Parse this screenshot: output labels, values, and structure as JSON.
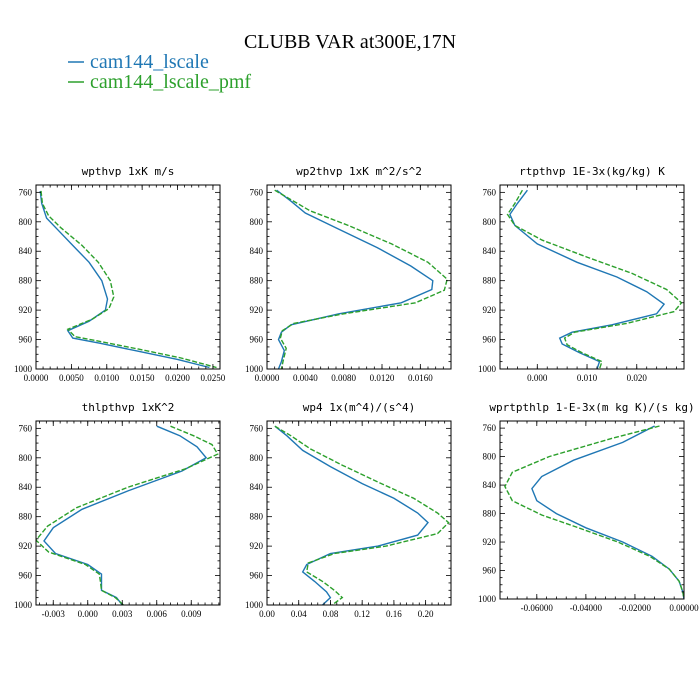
{
  "figure_title": "CLUBB VAR at300E,17N",
  "legend": [
    {
      "label": "cam144_lscale",
      "color": "#1f77b4",
      "dash": "solid"
    },
    {
      "label": "cam144_lscale_pmf",
      "color": "#2ca02c",
      "dash": "dashed"
    }
  ],
  "colors": {
    "series1": "#1f77b4",
    "series2": "#2ca02c"
  },
  "chart_data": [
    {
      "type": "line",
      "title": "wpthvp  1xK m/s",
      "xlim": [
        0.0,
        0.026
      ],
      "ylim": [
        1000,
        750
      ],
      "y_reversed": true,
      "xticks": [
        0.0,
        0.005,
        0.01,
        0.015,
        0.02,
        0.025
      ],
      "xtick_labels": [
        "0.0000",
        "0.0050",
        "0.0100",
        "0.0150",
        "0.0200",
        "0.0250"
      ],
      "yticks": [
        760,
        800,
        840,
        880,
        920,
        960,
        1000
      ],
      "ytick_labels": [
        "760",
        "800",
        "840",
        "880",
        "920",
        "960",
        "1000"
      ],
      "series": [
        {
          "name": "cam144_lscale",
          "points": [
            [
              0.0006,
              758
            ],
            [
              0.0008,
              775
            ],
            [
              0.0015,
              795
            ],
            [
              0.003,
              810
            ],
            [
              0.0055,
              835
            ],
            [
              0.0075,
              855
            ],
            [
              0.0093,
              880
            ],
            [
              0.0101,
              905
            ],
            [
              0.0098,
              920
            ],
            [
              0.0075,
              935
            ],
            [
              0.0045,
              948
            ],
            [
              0.0052,
              958
            ],
            [
              0.009,
              965
            ],
            [
              0.014,
              975
            ],
            [
              0.02,
              987
            ],
            [
              0.0245,
              998
            ]
          ]
        },
        {
          "name": "cam144_lscale_pmf",
          "points": [
            [
              0.0007,
              758
            ],
            [
              0.0009,
              775
            ],
            [
              0.0018,
              792
            ],
            [
              0.0035,
              808
            ],
            [
              0.0065,
              832
            ],
            [
              0.0088,
              855
            ],
            [
              0.0105,
              880
            ],
            [
              0.011,
              902
            ],
            [
              0.0103,
              918
            ],
            [
              0.008,
              932
            ],
            [
              0.0045,
              946
            ],
            [
              0.0055,
              956
            ],
            [
              0.0093,
              963
            ],
            [
              0.0145,
              973
            ],
            [
              0.0205,
              985
            ],
            [
              0.0255,
              998
            ]
          ]
        }
      ]
    },
    {
      "type": "line",
      "title": "wp2thvp  1xK m^2/s^2",
      "xlim": [
        0.0,
        0.0192
      ],
      "ylim": [
        1000,
        750
      ],
      "y_reversed": true,
      "xticks": [
        0.0,
        0.004,
        0.008,
        0.012,
        0.016
      ],
      "xtick_labels": [
        "0.0000",
        "0.0040",
        "0.0080",
        "0.0120",
        "0.0160"
      ],
      "yticks": [
        760,
        800,
        840,
        880,
        920,
        960,
        1000
      ],
      "ytick_labels": [
        "760",
        "800",
        "840",
        "880",
        "920",
        "960",
        "1000"
      ],
      "series": [
        {
          "name": "cam144_lscale",
          "points": [
            [
              0.001,
              757
            ],
            [
              0.0025,
              772
            ],
            [
              0.004,
              788
            ],
            [
              0.0075,
              810
            ],
            [
              0.0115,
              835
            ],
            [
              0.015,
              860
            ],
            [
              0.0173,
              880
            ],
            [
              0.0172,
              892
            ],
            [
              0.014,
              910
            ],
            [
              0.0075,
              925
            ],
            [
              0.0025,
              940
            ],
            [
              0.0015,
              950
            ],
            [
              0.0012,
              960
            ],
            [
              0.0018,
              975
            ],
            [
              0.0015,
              990
            ],
            [
              0.0012,
              1000
            ]
          ]
        },
        {
          "name": "cam144_lscale_pmf",
          "points": [
            [
              0.0008,
              757
            ],
            [
              0.0025,
              770
            ],
            [
              0.0045,
              785
            ],
            [
              0.0085,
              805
            ],
            [
              0.013,
              830
            ],
            [
              0.0168,
              855
            ],
            [
              0.0188,
              878
            ],
            [
              0.0185,
              893
            ],
            [
              0.0155,
              910
            ],
            [
              0.008,
              925
            ],
            [
              0.0028,
              938
            ],
            [
              0.0016,
              948
            ],
            [
              0.0014,
              958
            ],
            [
              0.002,
              972
            ],
            [
              0.0017,
              988
            ],
            [
              0.0015,
              1000
            ]
          ]
        }
      ]
    },
    {
      "type": "line",
      "title": "rtpthvp  1E-3x(kg/kg) K",
      "xlim": [
        -0.0075,
        0.0295
      ],
      "ylim": [
        1000,
        750
      ],
      "y_reversed": true,
      "xticks": [
        0.0,
        0.01,
        0.02
      ],
      "xtick_labels": [
        "0.000",
        "0.010",
        "0.020"
      ],
      "yticks": [
        760,
        800,
        840,
        880,
        920,
        960,
        1000
      ],
      "ytick_labels": [
        "760",
        "800",
        "840",
        "880",
        "920",
        "960",
        "1000"
      ],
      "series": [
        {
          "name": "cam144_lscale",
          "points": [
            [
              -0.002,
              757
            ],
            [
              -0.004,
              775
            ],
            [
              -0.0055,
              790
            ],
            [
              -0.0045,
              805
            ],
            [
              0.0,
              830
            ],
            [
              0.008,
              855
            ],
            [
              0.016,
              875
            ],
            [
              0.022,
              895
            ],
            [
              0.0255,
              912
            ],
            [
              0.024,
              925
            ],
            [
              0.015,
              940
            ],
            [
              0.007,
              950
            ],
            [
              0.0045,
              958
            ],
            [
              0.005,
              966
            ],
            [
              0.0085,
              978
            ],
            [
              0.0125,
              990
            ],
            [
              0.012,
              1000
            ]
          ]
        },
        {
          "name": "cam144_lscale_pmf",
          "points": [
            [
              -0.003,
              757
            ],
            [
              -0.0045,
              775
            ],
            [
              -0.006,
              790
            ],
            [
              -0.0045,
              805
            ],
            [
              0.001,
              825
            ],
            [
              0.01,
              848
            ],
            [
              0.019,
              870
            ],
            [
              0.026,
              892
            ],
            [
              0.029,
              910
            ],
            [
              0.0275,
              922
            ],
            [
              0.018,
              938
            ],
            [
              0.0075,
              950
            ],
            [
              0.0055,
              958
            ],
            [
              0.006,
              967
            ],
            [
              0.009,
              978
            ],
            [
              0.013,
              990
            ],
            [
              0.0125,
              1000
            ]
          ]
        }
      ]
    },
    {
      "type": "line",
      "title": "thlpthvp  1xK^2",
      "xlim": [
        -0.0045,
        0.0115
      ],
      "ylim": [
        1000,
        750
      ],
      "y_reversed": true,
      "xticks": [
        -0.003,
        0.0,
        0.003,
        0.006,
        0.009
      ],
      "xtick_labels": [
        "-0.003",
        "0.000",
        "0.003",
        "0.006",
        "0.009"
      ],
      "yticks": [
        760,
        800,
        840,
        880,
        920,
        960,
        1000
      ],
      "ytick_labels": [
        "760",
        "800",
        "840",
        "880",
        "920",
        "960",
        "1000"
      ],
      "series": [
        {
          "name": "cam144_lscale",
          "points": [
            [
              0.006,
              757
            ],
            [
              0.008,
              770
            ],
            [
              0.0095,
              785
            ],
            [
              0.0103,
              800
            ],
            [
              0.0082,
              818
            ],
            [
              0.0035,
              845
            ],
            [
              -0.0005,
              870
            ],
            [
              -0.003,
              895
            ],
            [
              -0.0038,
              913
            ],
            [
              -0.0028,
              930
            ],
            [
              0.0,
              945
            ],
            [
              0.0012,
              958
            ],
            [
              0.0012,
              968
            ],
            [
              0.0012,
              980
            ],
            [
              0.0025,
              990
            ],
            [
              0.003,
              1000
            ]
          ]
        },
        {
          "name": "cam144_lscale_pmf",
          "points": [
            [
              0.0072,
              757
            ],
            [
              0.0092,
              770
            ],
            [
              0.0108,
              782
            ],
            [
              0.0113,
              795
            ],
            [
              0.0085,
              815
            ],
            [
              0.0035,
              840
            ],
            [
              -0.001,
              868
            ],
            [
              -0.0035,
              893
            ],
            [
              -0.0045,
              912
            ],
            [
              -0.0034,
              928
            ],
            [
              -0.0002,
              945
            ],
            [
              0.001,
              958
            ],
            [
              0.0011,
              968
            ],
            [
              0.0012,
              980
            ],
            [
              0.0024,
              990
            ],
            [
              0.0031,
              1000
            ]
          ]
        }
      ]
    },
    {
      "type": "line",
      "title": "wp4  1x(m^4)/(s^4)",
      "xlim": [
        0.0,
        0.232
      ],
      "ylim": [
        1000,
        750
      ],
      "y_reversed": true,
      "xticks": [
        0.0,
        0.04,
        0.08,
        0.12,
        0.16,
        0.2
      ],
      "xtick_labels": [
        "0.00",
        "0.04",
        "0.08",
        "0.12",
        "0.16",
        "0.20"
      ],
      "yticks": [
        760,
        800,
        840,
        880,
        920,
        960,
        1000
      ],
      "ytick_labels": [
        "760",
        "800",
        "840",
        "880",
        "920",
        "960",
        "1000"
      ],
      "series": [
        {
          "name": "cam144_lscale",
          "points": [
            [
              0.01,
              757
            ],
            [
              0.025,
              770
            ],
            [
              0.045,
              790
            ],
            [
              0.08,
              812
            ],
            [
              0.12,
              835
            ],
            [
              0.16,
              855
            ],
            [
              0.19,
              875
            ],
            [
              0.203,
              888
            ],
            [
              0.19,
              905
            ],
            [
              0.14,
              920
            ],
            [
              0.08,
              930
            ],
            [
              0.05,
              945
            ],
            [
              0.045,
              955
            ],
            [
              0.06,
              968
            ],
            [
              0.075,
              982
            ],
            [
              0.08,
              990
            ],
            [
              0.07,
              1000
            ]
          ]
        },
        {
          "name": "cam144_lscale_pmf",
          "points": [
            [
              0.01,
              757
            ],
            [
              0.03,
              770
            ],
            [
              0.055,
              788
            ],
            [
              0.095,
              810
            ],
            [
              0.14,
              833
            ],
            [
              0.185,
              855
            ],
            [
              0.215,
              875
            ],
            [
              0.229,
              888
            ],
            [
              0.215,
              903
            ],
            [
              0.15,
              920
            ],
            [
              0.085,
              930
            ],
            [
              0.052,
              943
            ],
            [
              0.05,
              955
            ],
            [
              0.07,
              968
            ],
            [
              0.085,
              980
            ],
            [
              0.095,
              990
            ],
            [
              0.082,
              1000
            ]
          ]
        }
      ]
    },
    {
      "type": "line",
      "title": "wprtpthlp  1-E-3x(m kg K)/(s kg)",
      "xlim": [
        -0.075,
        0.0
      ],
      "ylim": [
        1000,
        750
      ],
      "y_reversed": true,
      "xticks": [
        -0.06,
        -0.04,
        -0.02,
        0.0
      ],
      "xtick_labels": [
        "-0.06000",
        "-0.04000",
        "-0.02000",
        "0.00000"
      ],
      "yticks": [
        760,
        800,
        840,
        880,
        920,
        960,
        1000
      ],
      "ytick_labels": [
        "760",
        "800",
        "840",
        "880",
        "920",
        "960",
        "1000"
      ],
      "series": [
        {
          "name": "cam144_lscale",
          "points": [
            [
              -0.012,
              757
            ],
            [
              -0.025,
              780
            ],
            [
              -0.045,
              805
            ],
            [
              -0.058,
              828
            ],
            [
              -0.062,
              845
            ],
            [
              -0.06,
              862
            ],
            [
              -0.052,
              880
            ],
            [
              -0.04,
              900
            ],
            [
              -0.025,
              920
            ],
            [
              -0.013,
              940
            ],
            [
              -0.006,
              958
            ],
            [
              -0.002,
              975
            ],
            [
              -0.0005,
              990
            ],
            [
              0.0,
              1000
            ]
          ]
        },
        {
          "name": "cam144_lscale_pmf",
          "points": [
            [
              -0.01,
              757
            ],
            [
              -0.03,
              775
            ],
            [
              -0.055,
              800
            ],
            [
              -0.07,
              822
            ],
            [
              -0.073,
              842
            ],
            [
              -0.07,
              862
            ],
            [
              -0.058,
              882
            ],
            [
              -0.043,
              900
            ],
            [
              -0.027,
              920
            ],
            [
              -0.014,
              940
            ],
            [
              -0.006,
              958
            ],
            [
              -0.002,
              975
            ],
            [
              -0.0005,
              990
            ],
            [
              0.0,
              1000
            ]
          ]
        }
      ]
    }
  ]
}
